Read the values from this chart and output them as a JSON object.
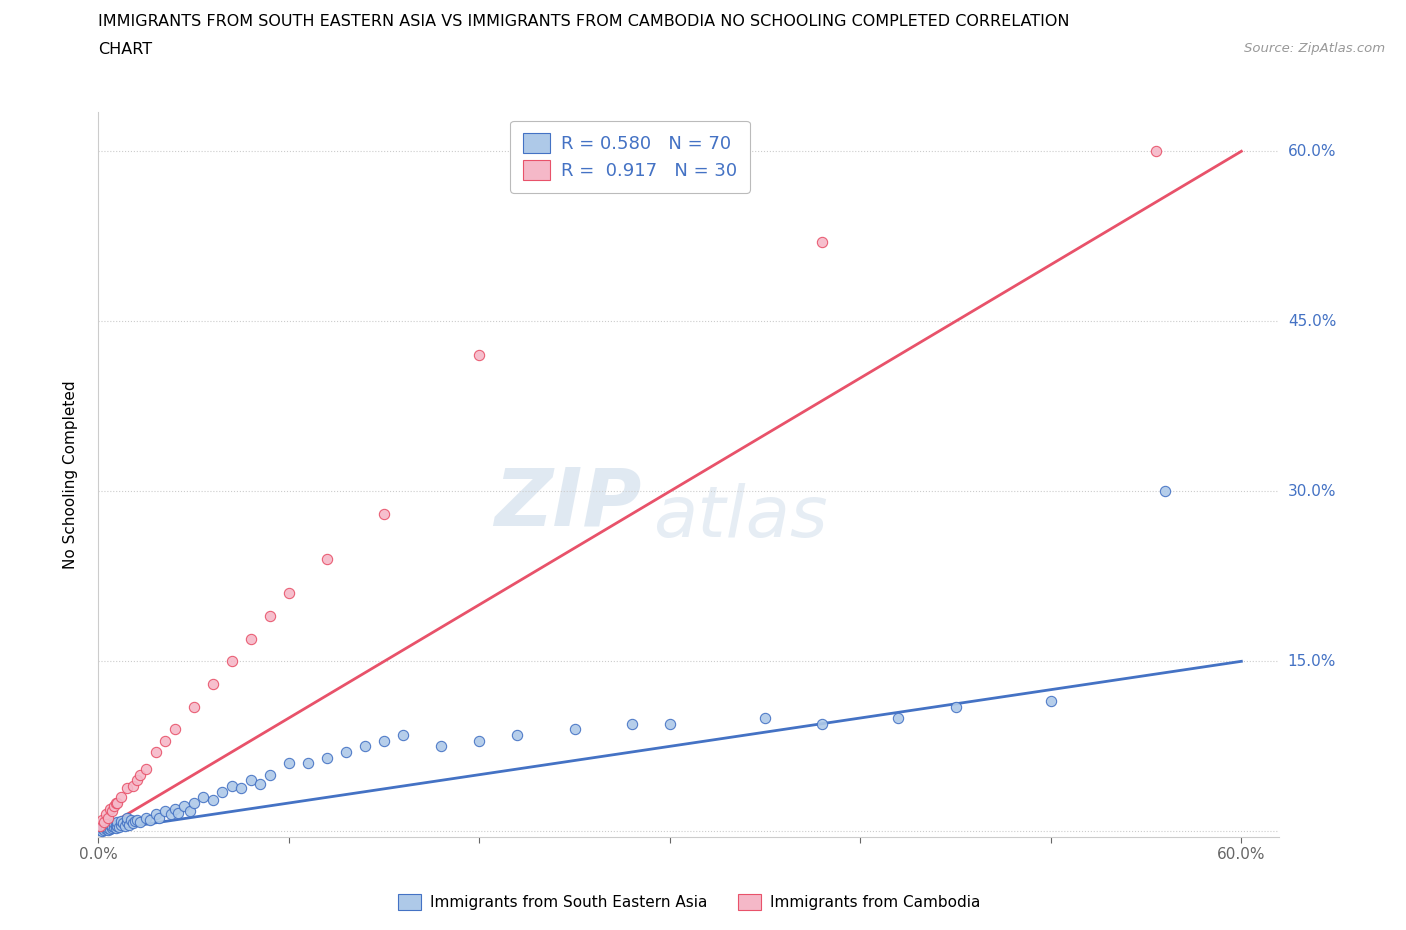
{
  "title_line1": "IMMIGRANTS FROM SOUTH EASTERN ASIA VS IMMIGRANTS FROM CAMBODIA NO SCHOOLING COMPLETED CORRELATION",
  "title_line2": "CHART",
  "source": "Source: ZipAtlas.com",
  "ylabel": "No Schooling Completed",
  "xlim": [
    0.0,
    0.62
  ],
  "ylim": [
    -0.005,
    0.635
  ],
  "watermark_top": "ZIP",
  "watermark_bot": "atlas",
  "series1_color": "#aec9e8",
  "series2_color": "#f5b8c8",
  "line1_color": "#4472c4",
  "line2_color": "#e8526a",
  "legend_label1": "Immigrants from South Eastern Asia",
  "legend_label2": "Immigrants from Cambodia",
  "R1": 0.58,
  "N1": 70,
  "R2": 0.917,
  "N2": 30,
  "line1_y_start": 0.0,
  "line1_y_end": 0.15,
  "line2_y_start": 0.0,
  "line2_y_end": 0.6,
  "y_ticks": [
    0.0,
    0.15,
    0.3,
    0.45,
    0.6
  ],
  "scatter1_x": [
    0.001,
    0.002,
    0.002,
    0.003,
    0.003,
    0.004,
    0.004,
    0.005,
    0.005,
    0.006,
    0.006,
    0.007,
    0.007,
    0.008,
    0.008,
    0.009,
    0.009,
    0.01,
    0.01,
    0.011,
    0.012,
    0.012,
    0.013,
    0.014,
    0.015,
    0.015,
    0.016,
    0.017,
    0.018,
    0.019,
    0.02,
    0.022,
    0.025,
    0.027,
    0.03,
    0.032,
    0.035,
    0.038,
    0.04,
    0.042,
    0.045,
    0.048,
    0.05,
    0.055,
    0.06,
    0.065,
    0.07,
    0.075,
    0.08,
    0.085,
    0.09,
    0.1,
    0.11,
    0.12,
    0.13,
    0.14,
    0.15,
    0.16,
    0.18,
    0.2,
    0.22,
    0.25,
    0.28,
    0.3,
    0.35,
    0.38,
    0.42,
    0.45,
    0.5,
    0.56
  ],
  "scatter1_y": [
    0.001,
    0.0,
    0.003,
    0.001,
    0.005,
    0.002,
    0.004,
    0.001,
    0.003,
    0.002,
    0.006,
    0.003,
    0.005,
    0.004,
    0.007,
    0.003,
    0.006,
    0.005,
    0.008,
    0.004,
    0.006,
    0.009,
    0.007,
    0.005,
    0.008,
    0.012,
    0.006,
    0.01,
    0.007,
    0.009,
    0.01,
    0.008,
    0.012,
    0.01,
    0.015,
    0.012,
    0.018,
    0.015,
    0.02,
    0.016,
    0.022,
    0.018,
    0.025,
    0.03,
    0.028,
    0.035,
    0.04,
    0.038,
    0.045,
    0.042,
    0.05,
    0.06,
    0.06,
    0.065,
    0.07,
    0.075,
    0.08,
    0.085,
    0.075,
    0.08,
    0.085,
    0.09,
    0.095,
    0.095,
    0.1,
    0.095,
    0.1,
    0.11,
    0.115,
    0.3
  ],
  "scatter2_x": [
    0.001,
    0.002,
    0.003,
    0.004,
    0.005,
    0.006,
    0.007,
    0.008,
    0.009,
    0.01,
    0.012,
    0.015,
    0.018,
    0.02,
    0.022,
    0.025,
    0.03,
    0.035,
    0.04,
    0.05,
    0.06,
    0.07,
    0.08,
    0.09,
    0.1,
    0.12,
    0.15,
    0.2,
    0.38,
    0.555
  ],
  "scatter2_y": [
    0.005,
    0.01,
    0.008,
    0.015,
    0.012,
    0.02,
    0.018,
    0.022,
    0.025,
    0.025,
    0.03,
    0.038,
    0.04,
    0.045,
    0.05,
    0.055,
    0.07,
    0.08,
    0.09,
    0.11,
    0.13,
    0.15,
    0.17,
    0.19,
    0.21,
    0.24,
    0.28,
    0.42,
    0.52,
    0.6
  ]
}
